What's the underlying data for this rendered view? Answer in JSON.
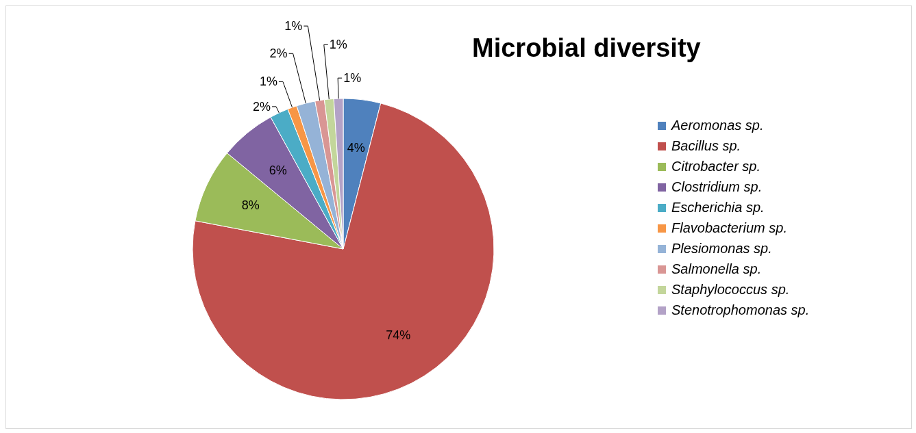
{
  "chart_data": {
    "type": "pie",
    "title": "Microbial diversity",
    "categories": [
      "Aeromonas sp.",
      "Bacillus sp.",
      "Citrobacter sp.",
      "Clostridium sp.",
      "Escherichia sp.",
      "Flavobacterium sp.",
      "Plesiomonas sp.",
      "Salmonella sp.",
      "Staphylococcus sp.",
      "Stenotrophomonas sp."
    ],
    "values": [
      4,
      74,
      8,
      6,
      2,
      1,
      2,
      1,
      1,
      1
    ],
    "value_labels": [
      "4%",
      "74%",
      "8%",
      "6%",
      "2%",
      "1%",
      "2%",
      "1%",
      "1%",
      "1%"
    ],
    "colors": [
      "#4f81bd",
      "#c0504d",
      "#9bbb59",
      "#8064a2",
      "#4bacc6",
      "#f79646",
      "#95b3d7",
      "#d99694",
      "#c3d69b",
      "#b3a2c7"
    ],
    "legend": "right"
  }
}
